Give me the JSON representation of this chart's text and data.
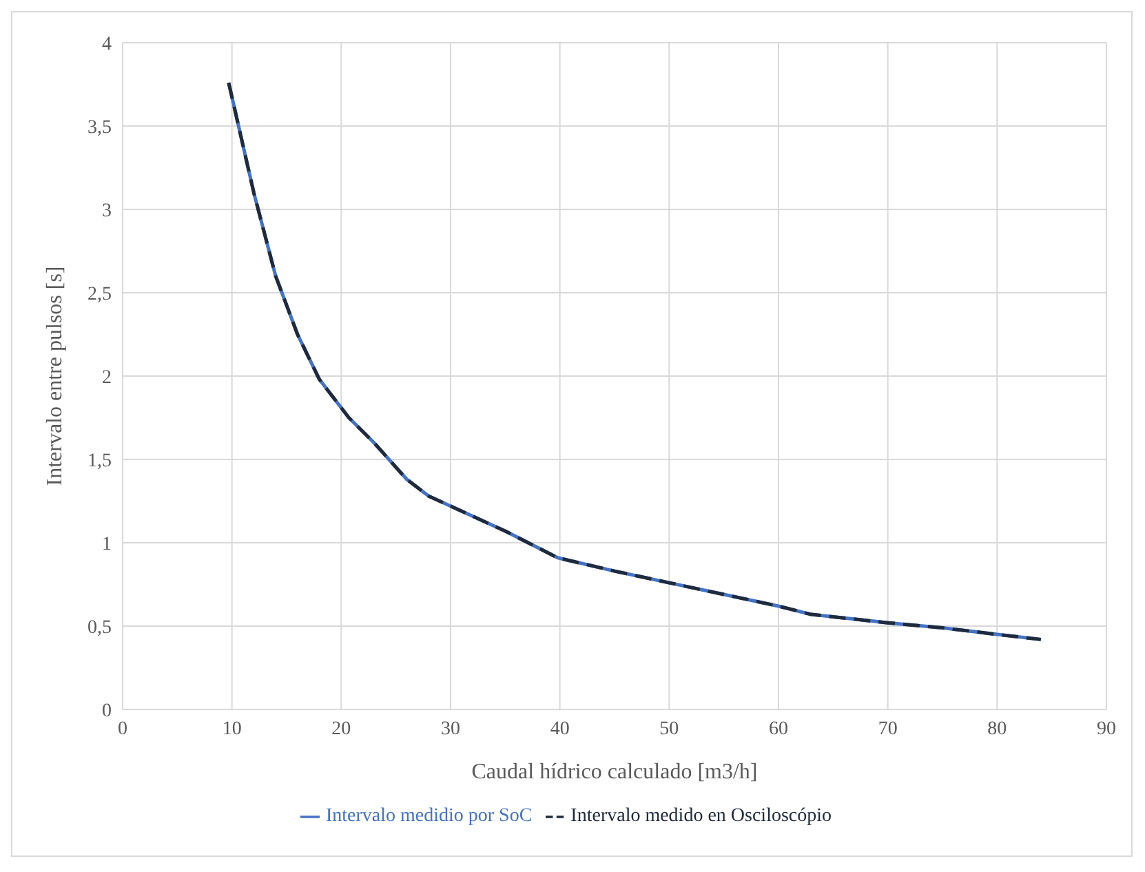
{
  "chart_data": {
    "type": "line",
    "xlabel": "Caudal hídrico calculado [m3/h]",
    "ylabel": "Intervalo entre pulsos [s]",
    "xlim": [
      0,
      90
    ],
    "xticks": [
      0,
      10,
      20,
      30,
      40,
      50,
      60,
      70,
      80,
      90
    ],
    "ylim": [
      0,
      4
    ],
    "yticks": [
      0,
      {
        "value": 0.5,
        "label": "0,5"
      },
      1,
      {
        "value": 1.5,
        "label": "1,5"
      },
      2,
      {
        "value": 2.5,
        "label": "2,5"
      },
      3,
      {
        "value": 3.5,
        "label": "3,5"
      },
      4
    ],
    "grid": true,
    "legend": "bottom",
    "marker": "none",
    "x": [
      9.7,
      12,
      14,
      16,
      18,
      20.7,
      23,
      26,
      28,
      30,
      35,
      39.8,
      45,
      50,
      55,
      60,
      63,
      70,
      75,
      80,
      84
    ],
    "series": [
      {
        "name": "Intervalo medidio por SoC",
        "color": "#4472c4",
        "line_style": "solid",
        "values": [
          3.76,
          3.1,
          2.6,
          2.25,
          1.98,
          1.75,
          1.6,
          1.38,
          1.28,
          1.22,
          1.07,
          0.91,
          0.83,
          0.76,
          0.69,
          0.62,
          0.57,
          0.52,
          0.49,
          0.45,
          0.42
        ]
      },
      {
        "name": "Intervalo medido en Osciloscópio",
        "color": "#1f2a3c",
        "line_style": "dashed",
        "values": [
          3.76,
          3.1,
          2.6,
          2.25,
          1.98,
          1.75,
          1.6,
          1.38,
          1.28,
          1.22,
          1.07,
          0.91,
          0.83,
          0.76,
          0.69,
          0.62,
          0.57,
          0.52,
          0.49,
          0.45,
          0.42
        ]
      }
    ]
  }
}
